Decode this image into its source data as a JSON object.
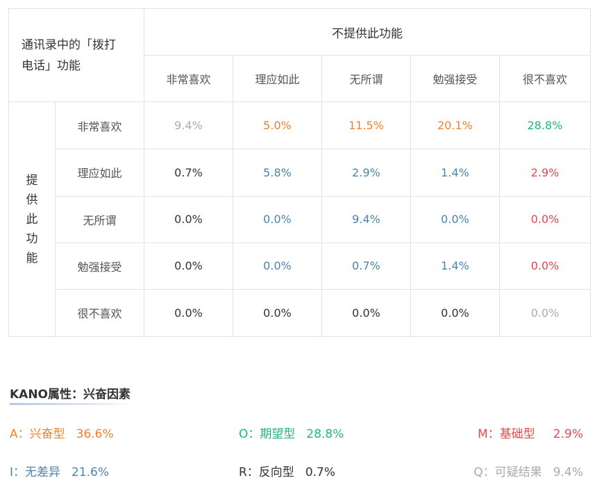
{
  "corner_label": "通讯录中的「拨打电话」功能",
  "corner_lines": [
    "通讯录中的「拨打",
    "电话」功能"
  ],
  "column_group_label": "不提供此功能",
  "row_group_label": "提供此功能",
  "row_group_chars": [
    "提",
    "供",
    "此",
    "功",
    "能"
  ],
  "colors": {
    "orange": "#f0812e",
    "green": "#1fb778",
    "red": "#e5484d",
    "blue": "#4a85ad",
    "gray": "#aaaaaa",
    "dark": "#333333"
  },
  "chart_data": {
    "type": "table",
    "columns": [
      "非常喜欢",
      "理应如此",
      "无所谓",
      "勉强接受",
      "很不喜欢"
    ],
    "rows": [
      {
        "label": "非常喜欢",
        "values": [
          "9.4%",
          "5.0%",
          "11.5%",
          "20.1%",
          "28.8%"
        ],
        "colors": [
          "gray",
          "orange",
          "orange",
          "orange",
          "green"
        ]
      },
      {
        "label": "理应如此",
        "values": [
          "0.7%",
          "5.8%",
          "2.9%",
          "1.4%",
          "2.9%"
        ],
        "colors": [
          "dark",
          "blue",
          "blue",
          "blue",
          "red"
        ]
      },
      {
        "label": "无所谓",
        "values": [
          "0.0%",
          "0.0%",
          "9.4%",
          "0.0%",
          "0.0%"
        ],
        "colors": [
          "dark",
          "blue",
          "blue",
          "blue",
          "red"
        ]
      },
      {
        "label": "勉强接受",
        "values": [
          "0.0%",
          "0.0%",
          "0.7%",
          "1.4%",
          "0.0%"
        ],
        "colors": [
          "dark",
          "blue",
          "blue",
          "blue",
          "red"
        ]
      },
      {
        "label": "很不喜欢",
        "values": [
          "0.0%",
          "0.0%",
          "0.0%",
          "0.0%",
          "0.0%"
        ],
        "colors": [
          "dark",
          "dark",
          "dark",
          "dark",
          "gray"
        ]
      }
    ]
  },
  "summary": {
    "title": "KANO属性：兴奋因素",
    "items": [
      {
        "label": "A：兴奋型",
        "value": "36.6%",
        "color": "#f0812e"
      },
      {
        "label": "O：期望型",
        "value": "28.8%",
        "color": "#1fb778"
      },
      {
        "label": "M：基础型",
        "value": "2.9%",
        "color": "#e5484d"
      },
      {
        "label": "I：无差异",
        "value": "21.6%",
        "color": "#4a85ad"
      },
      {
        "label": "R：反向型",
        "value": "0.7%",
        "color": "#333333"
      },
      {
        "label": "Q：可疑结果",
        "value": "9.4%",
        "color": "#aaaaaa"
      }
    ]
  }
}
